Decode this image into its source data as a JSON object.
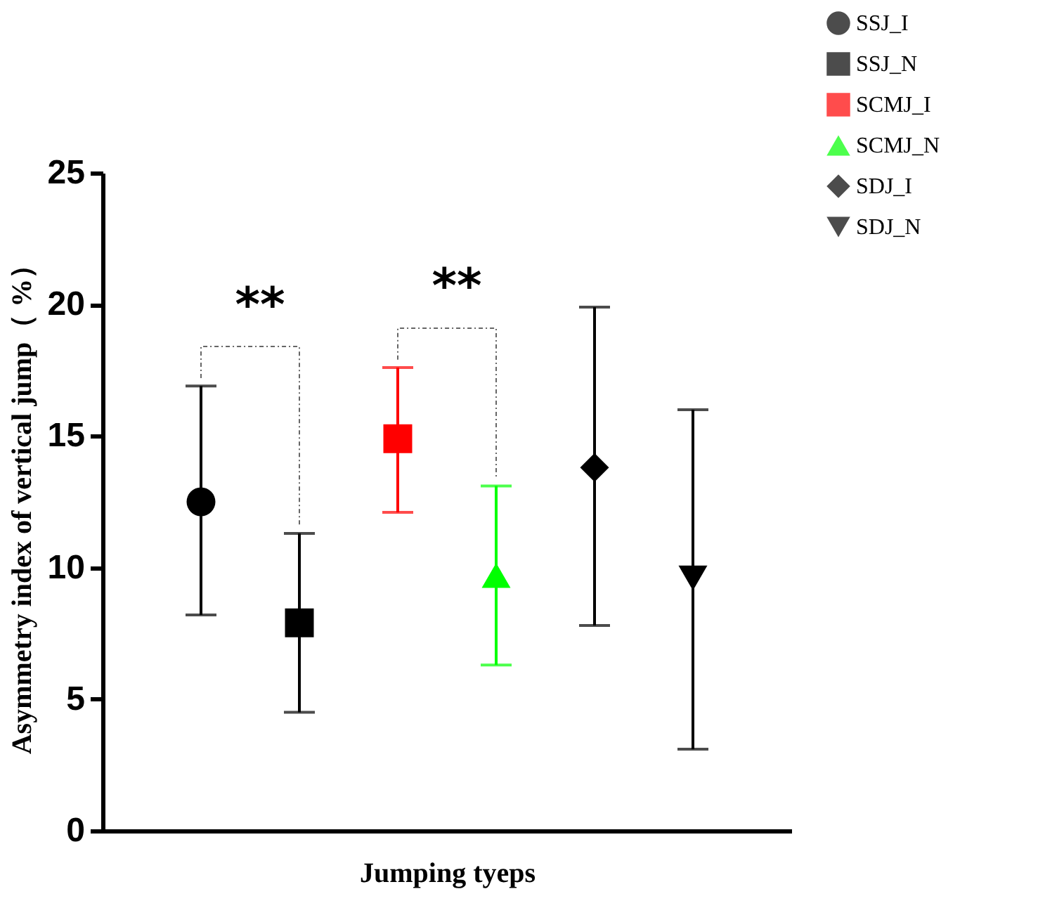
{
  "chart_data": {
    "type": "scatter",
    "xlabel": "Jumping tyeps",
    "ylabel": "Asymmetry index of vertical jump（ %）",
    "categories": [
      null,
      null,
      null,
      null,
      null,
      null
    ],
    "series": [
      {
        "name": "SSJ_I",
        "color": "#000000",
        "marker": "circle",
        "values": [
          12.5,
          null,
          null,
          null,
          null,
          null
        ],
        "errors": [
          [
            8.2,
            16.9
          ],
          null,
          null,
          null,
          null,
          null
        ]
      },
      {
        "name": "SSJ_N",
        "color": "#000000",
        "marker": "square",
        "values": [
          null,
          7.9,
          null,
          null,
          null,
          null
        ],
        "errors": [
          null,
          [
            4.5,
            11.3
          ],
          null,
          null,
          null,
          null
        ]
      },
      {
        "name": "SCMJ_I",
        "color": "#ff0000",
        "marker": "square",
        "values": [
          null,
          null,
          14.9,
          null,
          null,
          null
        ],
        "errors": [
          null,
          null,
          [
            12.1,
            17.6
          ],
          null,
          null,
          null
        ]
      },
      {
        "name": "SCMJ_N",
        "color": "#00ff00",
        "marker": "triangle",
        "values": [
          null,
          null,
          null,
          9.7,
          null,
          null
        ],
        "errors": [
          null,
          null,
          null,
          [
            6.3,
            13.1
          ],
          null,
          null
        ]
      },
      {
        "name": "SDJ_I",
        "color": "#000000",
        "marker": "diamond",
        "values": [
          null,
          null,
          null,
          null,
          13.8,
          null
        ],
        "errors": [
          null,
          null,
          null,
          null,
          [
            7.8,
            19.9
          ],
          null
        ]
      },
      {
        "name": "SDJ_N",
        "color": "#000000",
        "marker": "triangle-down",
        "values": [
          null,
          null,
          null,
          null,
          null,
          9.6
        ],
        "errors": [
          null,
          null,
          null,
          null,
          null,
          [
            3.1,
            16.0
          ]
        ]
      }
    ],
    "annotations": [
      "**",
      "**"
    ],
    "ylim": [
      0,
      25
    ],
    "yticks": [
      0,
      5,
      10,
      15,
      20,
      25
    ],
    "grid": false,
    "legend": "top right",
    "tick_labels": "y"
  }
}
